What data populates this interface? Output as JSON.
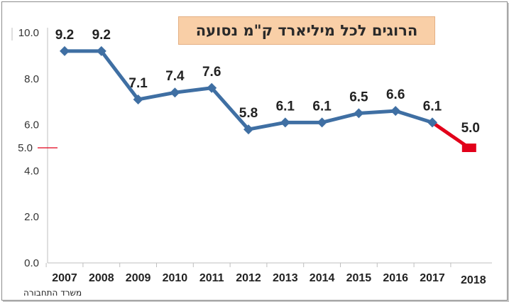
{
  "chart_data": {
    "type": "line",
    "title": "הרוגים לכל מיליארד ק\"מ נסועה",
    "categories": [
      "2007",
      "2008",
      "2009",
      "2010",
      "2011",
      "2012",
      "2013",
      "2014",
      "2015",
      "2016",
      "2017",
      "2018"
    ],
    "series": [
      {
        "values": [
          9.2,
          9.2,
          7.1,
          7.4,
          7.6,
          5.8,
          6.1,
          6.1,
          6.5,
          6.6,
          6.1,
          null
        ],
        "color": "#3f6fa3"
      },
      {
        "values": [
          null,
          null,
          null,
          null,
          null,
          null,
          null,
          null,
          null,
          null,
          6.1,
          5.0
        ],
        "color": "#e2001a"
      }
    ],
    "data_labels": [
      "9.2",
      "9.2",
      "7.1",
      "7.4",
      "7.6",
      "5.8",
      "6.1",
      "6.1",
      "6.5",
      "6.6",
      "6.1",
      "5.0"
    ],
    "yticks": [
      "0.0",
      "2.0",
      "4.0",
      "6.0",
      "8.0",
      "10.0"
    ],
    "ylim": [
      0,
      10
    ],
    "highlight": {
      "y_value": 5.0,
      "y_label": "5.0",
      "color": "#e2001a"
    },
    "highlight_category": "2018",
    "source": "משרד התחבורה"
  }
}
